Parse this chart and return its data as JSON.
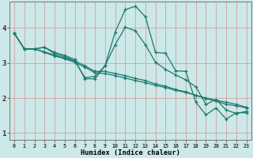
{
  "title": "",
  "xlabel": "Humidex (Indice chaleur)",
  "bg_color": "#cce8e8",
  "grid_color": "#d4a0a0",
  "line_color": "#1a7a6e",
  "xlim": [
    -0.5,
    23.5
  ],
  "ylim": [
    0.8,
    4.75
  ],
  "xticks": [
    0,
    1,
    2,
    3,
    4,
    5,
    6,
    7,
    8,
    9,
    10,
    11,
    12,
    13,
    14,
    15,
    16,
    17,
    18,
    19,
    20,
    21,
    22,
    23
  ],
  "yticks": [
    1,
    2,
    3,
    4
  ],
  "lines": [
    [
      3.85,
      3.4,
      3.4,
      3.45,
      3.3,
      3.22,
      3.1,
      2.55,
      2.55,
      2.92,
      3.88,
      4.52,
      4.62,
      4.32,
      3.3,
      3.28,
      2.78,
      2.76,
      1.88,
      1.52,
      1.72,
      1.4,
      1.58,
      1.58
    ],
    [
      3.85,
      3.4,
      3.4,
      3.32,
      3.22,
      3.14,
      3.06,
      2.92,
      2.76,
      2.76,
      2.7,
      2.64,
      2.56,
      2.5,
      2.4,
      2.34,
      2.24,
      2.18,
      2.08,
      1.98,
      1.92,
      1.82,
      1.78,
      1.72
    ],
    [
      3.85,
      3.4,
      3.4,
      3.3,
      3.2,
      3.12,
      3.02,
      2.88,
      2.72,
      2.7,
      2.64,
      2.57,
      2.5,
      2.44,
      2.36,
      2.3,
      2.22,
      2.16,
      2.08,
      2.0,
      1.94,
      1.88,
      1.82,
      1.74
    ],
    [
      3.85,
      3.4,
      3.4,
      3.45,
      3.26,
      3.18,
      3.06,
      2.58,
      2.62,
      2.92,
      3.52,
      4.02,
      3.92,
      3.52,
      3.02,
      2.82,
      2.66,
      2.52,
      2.32,
      1.82,
      1.96,
      1.66,
      1.56,
      1.62
    ]
  ]
}
